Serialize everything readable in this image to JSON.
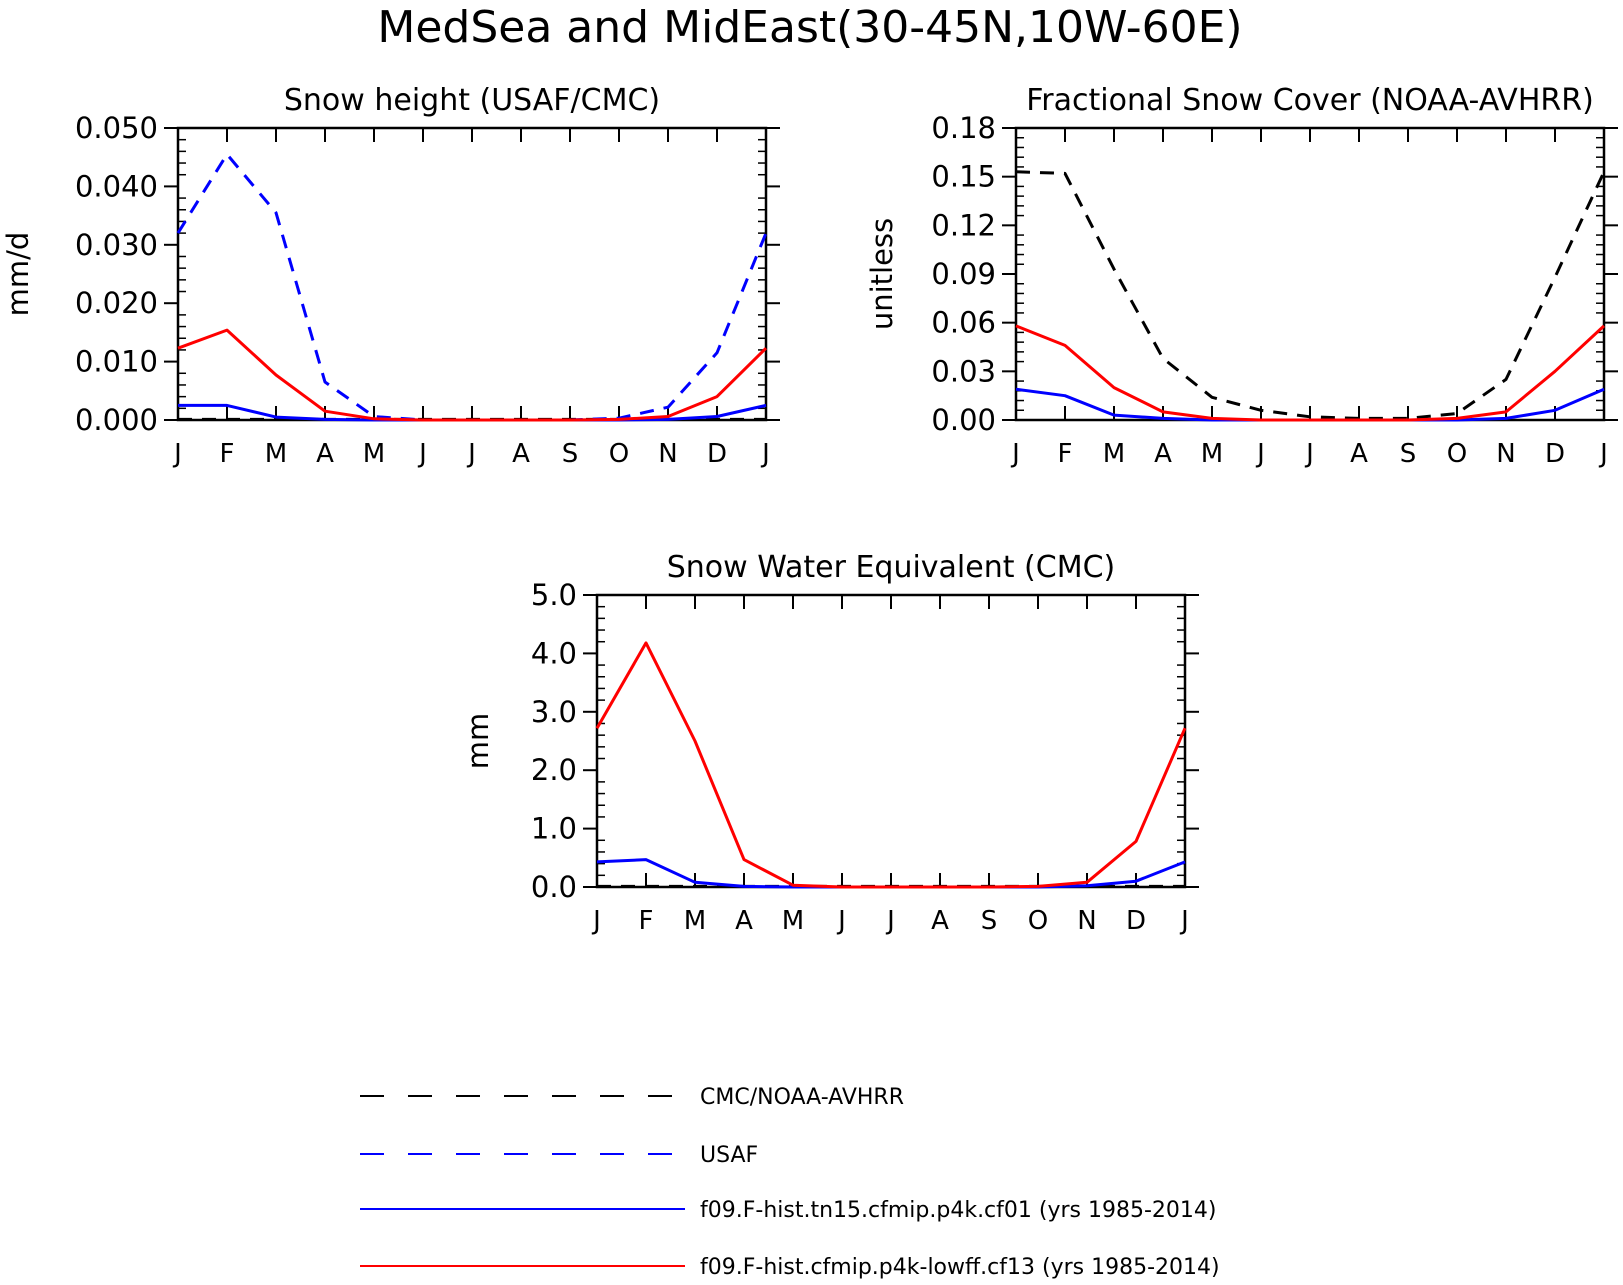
{
  "page_title": "MedSea and MidEast(30-45N,10W-60E)",
  "months": [
    "J",
    "F",
    "M",
    "A",
    "M",
    "J",
    "J",
    "A",
    "S",
    "O",
    "N",
    "D",
    "J"
  ],
  "legend": {
    "entries": [
      {
        "label": "CMC/NOAA-AVHRR",
        "color": "#000000",
        "style": "dashed"
      },
      {
        "label": "USAF",
        "color": "#0000ff",
        "style": "dashed"
      },
      {
        "label": "f09.F-hist.tn15.cfmip.p4k.cf01 (yrs 1985-2014)",
        "color": "#0000ff",
        "style": "solid"
      },
      {
        "label": "f09.F-hist.cfmip.p4k-lowff.cf13 (yrs 1985-2014)",
        "color": "#ff0000",
        "style": "solid"
      }
    ]
  },
  "chart_data": [
    {
      "type": "line",
      "title": "Snow height (USAF/CMC)",
      "xlabel": "",
      "ylabel": "mm/d",
      "ylim": [
        0,
        0.05
      ],
      "yticks": [
        "0.000",
        "0.010",
        "0.020",
        "0.030",
        "0.040",
        "0.050"
      ],
      "grid": false,
      "series": [
        {
          "values": [
            0.0001,
            0.0001,
            0.0001,
            0.0001,
            0.0001,
            0.0001,
            0.0001,
            0.0001,
            0.0001,
            0.0001,
            0.0001,
            0.0001,
            0.0001
          ],
          "color": "#000000",
          "style": "dashed"
        },
        {
          "values": [
            0.032,
            0.0455,
            0.0355,
            0.0065,
            0.0006,
            0.0,
            0.0,
            0.0,
            0.0,
            0.0003,
            0.0022,
            0.0115,
            0.032
          ],
          "color": "#0000ff",
          "style": "dashed"
        },
        {
          "values": [
            0.0025,
            0.0025,
            0.0005,
            0.0001,
            0.0,
            0.0,
            0.0,
            0.0,
            0.0,
            0.0,
            0.0001,
            0.0006,
            0.0025
          ],
          "color": "#0000ff",
          "style": "solid"
        },
        {
          "values": [
            0.0123,
            0.0154,
            0.0077,
            0.0015,
            0.0002,
            0.0,
            0.0,
            0.0,
            0.0,
            0.0001,
            0.0006,
            0.004,
            0.0123
          ],
          "color": "#ff0000",
          "style": "solid"
        }
      ]
    },
    {
      "type": "line",
      "title": "Fractional Snow Cover (NOAA-AVHRR)",
      "xlabel": "",
      "ylabel": "unitless",
      "ylim": [
        0,
        0.18
      ],
      "yticks": [
        "0.00",
        "0.03",
        "0.06",
        "0.09",
        "0.12",
        "0.15",
        "0.18"
      ],
      "grid": false,
      "series": [
        {
          "values": [
            0.153,
            0.152,
            0.093,
            0.038,
            0.014,
            0.006,
            0.002,
            0.001,
            0.001,
            0.004,
            0.025,
            0.088,
            0.153
          ],
          "color": "#000000",
          "style": "dashed"
        },
        {
          "values": [
            0.019,
            0.015,
            0.003,
            0.001,
            0.0,
            0.0,
            0.0,
            0.0,
            0.0,
            0.0,
            0.001,
            0.006,
            0.019
          ],
          "color": "#0000ff",
          "style": "solid"
        },
        {
          "values": [
            0.058,
            0.046,
            0.02,
            0.005,
            0.001,
            0.0,
            0.0,
            0.0,
            0.0,
            0.001,
            0.005,
            0.03,
            0.058
          ],
          "color": "#ff0000",
          "style": "solid"
        }
      ]
    },
    {
      "type": "line",
      "title": "Snow Water Equivalent (CMC)",
      "xlabel": "",
      "ylabel": "mm",
      "ylim": [
        0,
        5
      ],
      "yticks": [
        "0.0",
        "1.0",
        "2.0",
        "3.0",
        "4.0",
        "5.0"
      ],
      "grid": false,
      "series": [
        {
          "values": [
            0.01,
            0.01,
            0.01,
            0.01,
            0.01,
            0.01,
            0.01,
            0.01,
            0.01,
            0.01,
            0.01,
            0.01,
            0.01
          ],
          "color": "#000000",
          "style": "dashed"
        },
        {
          "values": [
            0.43,
            0.47,
            0.08,
            0.01,
            0.0,
            0.0,
            0.0,
            0.0,
            0.0,
            0.0,
            0.02,
            0.1,
            0.43
          ],
          "color": "#0000ff",
          "style": "solid"
        },
        {
          "values": [
            2.72,
            4.18,
            2.5,
            0.47,
            0.03,
            0.0,
            0.0,
            0.0,
            0.0,
            0.01,
            0.08,
            0.78,
            2.72
          ],
          "color": "#ff0000",
          "style": "solid"
        }
      ]
    }
  ]
}
